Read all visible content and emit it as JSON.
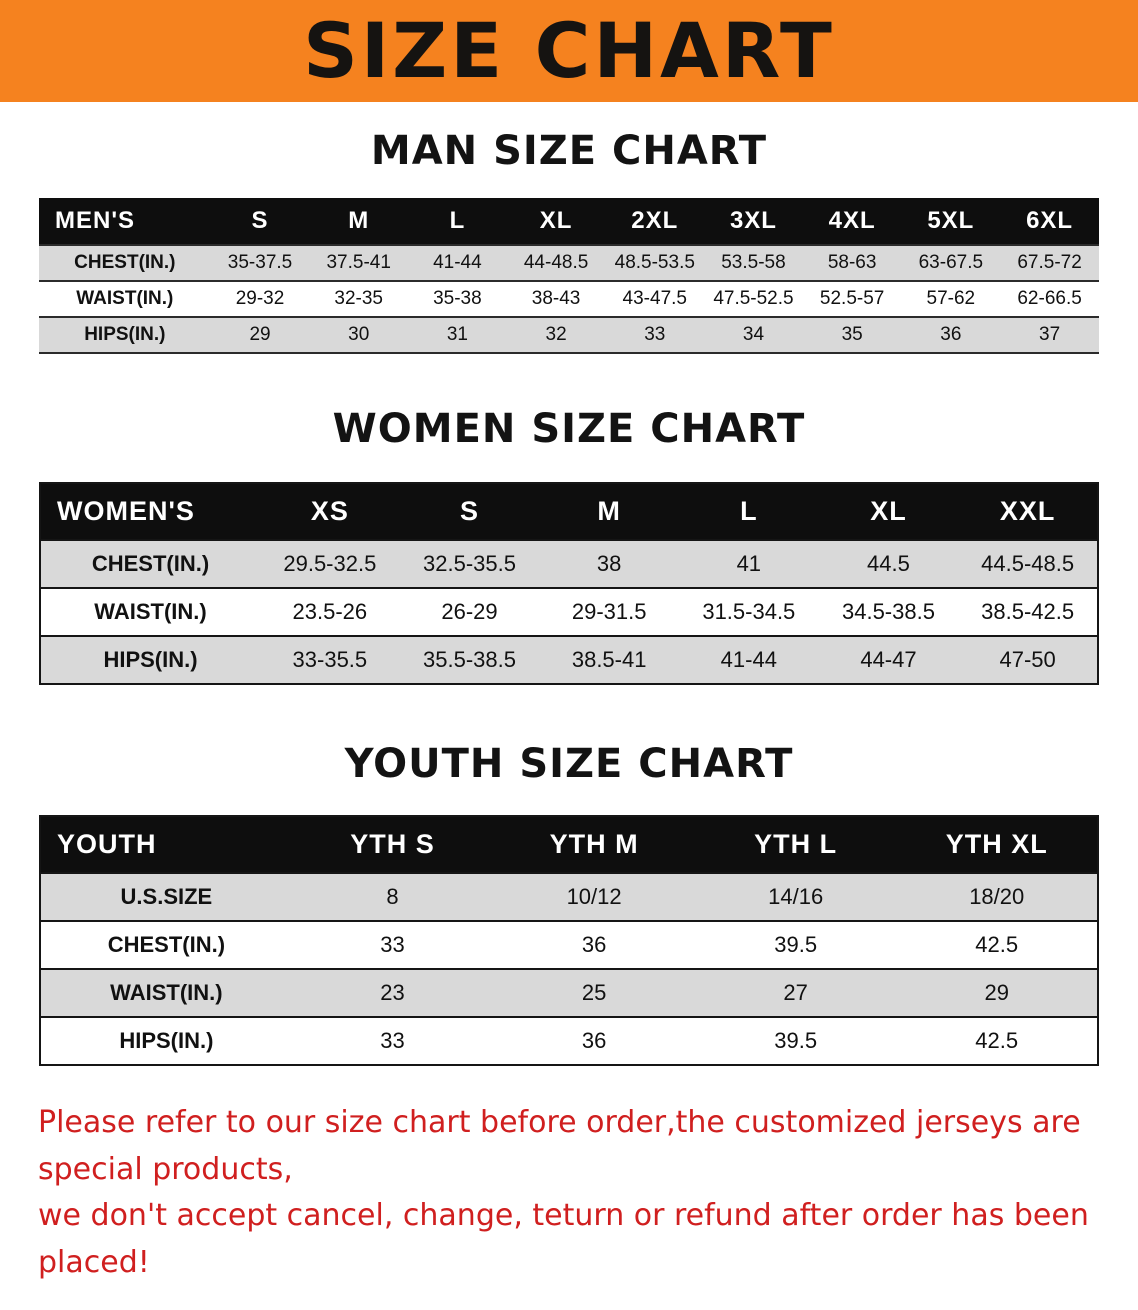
{
  "banner": {
    "title": "SIZE CHART"
  },
  "colors": {
    "banner_bg": "#F5821F",
    "table_header_bg": "#0E0E0E",
    "stripe_row_bg": "#D9D9D9",
    "footer_text": "#D01F1F"
  },
  "chart_data": [
    {
      "type": "table",
      "title": "MAN SIZE CHART",
      "columns": [
        "MEN'S",
        "S",
        "M",
        "L",
        "XL",
        "2XL",
        "3XL",
        "4XL",
        "5XL",
        "6XL"
      ],
      "rows": [
        [
          "CHEST(IN.)",
          "35-37.5",
          "37.5-41",
          "41-44",
          "44-48.5",
          "48.5-53.5",
          "53.5-58",
          "58-63",
          "63-67.5",
          "67.5-72"
        ],
        [
          "WAIST(IN.)",
          "29-32",
          "32-35",
          "35-38",
          "38-43",
          "43-47.5",
          "47.5-52.5",
          "52.5-57",
          "57-62",
          "62-66.5"
        ],
        [
          "HIPS(IN.)",
          "29",
          "30",
          "31",
          "32",
          "33",
          "34",
          "35",
          "36",
          "37"
        ]
      ]
    },
    {
      "type": "table",
      "title": "WOMEN SIZE CHART",
      "columns": [
        "WOMEN'S",
        "XS",
        "S",
        "M",
        "L",
        "XL",
        "XXL"
      ],
      "rows": [
        [
          "CHEST(IN.)",
          "29.5-32.5",
          "32.5-35.5",
          "38",
          "41",
          "44.5",
          "44.5-48.5"
        ],
        [
          "WAIST(IN.)",
          "23.5-26",
          "26-29",
          "29-31.5",
          "31.5-34.5",
          "34.5-38.5",
          "38.5-42.5"
        ],
        [
          "HIPS(IN.)",
          "33-35.5",
          "35.5-38.5",
          "38.5-41",
          "41-44",
          "44-47",
          "47-50"
        ]
      ]
    },
    {
      "type": "table",
      "title": "YOUTH SIZE CHART",
      "columns": [
        "YOUTH",
        "YTH S",
        "YTH M",
        "YTH L",
        "YTH XL"
      ],
      "rows": [
        [
          "U.S.SIZE",
          "8",
          "10/12",
          "14/16",
          "18/20"
        ],
        [
          "CHEST(IN.)",
          "33",
          "36",
          "39.5",
          "42.5"
        ],
        [
          "WAIST(IN.)",
          "23",
          "25",
          "27",
          "29"
        ],
        [
          "HIPS(IN.)",
          "33",
          "36",
          "39.5",
          "42.5"
        ]
      ]
    }
  ],
  "footer": {
    "line1": "Please refer to our size chart before order,the customized jerseys are special products,",
    "line2": "we don't accept cancel, change, teturn or refund after order has been placed!"
  }
}
